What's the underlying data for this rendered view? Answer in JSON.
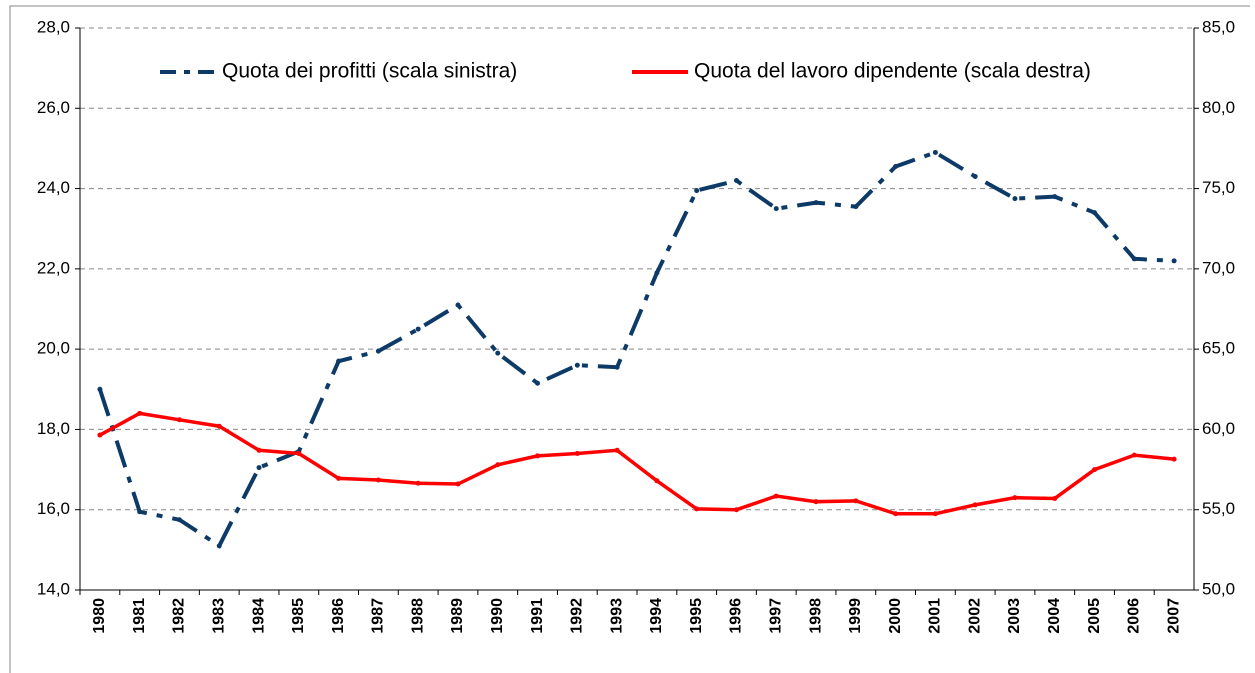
{
  "chart_data": {
    "type": "line",
    "categories": [
      "1980",
      "1981",
      "1982",
      "1983",
      "1984",
      "1985",
      "1986",
      "1987",
      "1988",
      "1989",
      "1990",
      "1991",
      "1992",
      "1993",
      "1994",
      "1995",
      "1996",
      "1997",
      "1998",
      "1999",
      "2000",
      "2001",
      "2002",
      "2003",
      "2004",
      "2005",
      "2006",
      "2007"
    ],
    "series": [
      {
        "name": "Quota dei profitti (scala sinistra)",
        "color": "#0d3a66",
        "dash": true,
        "values": [
          19.0,
          15.95,
          15.75,
          15.1,
          17.05,
          17.45,
          19.7,
          19.95,
          20.5,
          21.1,
          19.9,
          19.15,
          19.6,
          19.55,
          21.9,
          23.95,
          24.2,
          23.5,
          23.65,
          23.55,
          24.55,
          24.9,
          24.3,
          23.75,
          23.8,
          23.4,
          22.25,
          22.2
        ]
      },
      {
        "name": "Quota del lavoro dipendente (scala destra)",
        "color": "#ff0000",
        "axis": "y2",
        "values": [
          59.65,
          61.0,
          60.6,
          60.2,
          58.7,
          58.5,
          56.95,
          56.85,
          56.65,
          56.6,
          57.8,
          58.35,
          58.5,
          58.7,
          56.8,
          55.05,
          55.0,
          55.85,
          55.5,
          55.55,
          54.75,
          54.75,
          55.3,
          55.75,
          55.7,
          57.5,
          58.4,
          58.15
        ]
      }
    ],
    "ylim": [
      14,
      28
    ],
    "yticks": [
      {
        "value": 14,
        "label": "14,0"
      },
      {
        "value": 16,
        "label": "16,0"
      },
      {
        "value": 18,
        "label": "18,0"
      },
      {
        "value": 20,
        "label": "20,0"
      },
      {
        "value": 22,
        "label": "22,0"
      },
      {
        "value": 24,
        "label": "24,0"
      },
      {
        "value": 26,
        "label": "26,0"
      },
      {
        "value": 28,
        "label": "28,0"
      }
    ],
    "y2lim": [
      50,
      85
    ],
    "y2ticks": [
      {
        "value": 50,
        "label": "50,0"
      },
      {
        "value": 55,
        "label": "55,0"
      },
      {
        "value": 60,
        "label": "60,0"
      },
      {
        "value": 65,
        "label": "65,0"
      },
      {
        "value": 70,
        "label": "70,0"
      },
      {
        "value": 75,
        "label": "75,0"
      },
      {
        "value": 80,
        "label": "80,0"
      },
      {
        "value": 85,
        "label": "85,0"
      }
    ],
    "grid": true,
    "legend": "top"
  }
}
